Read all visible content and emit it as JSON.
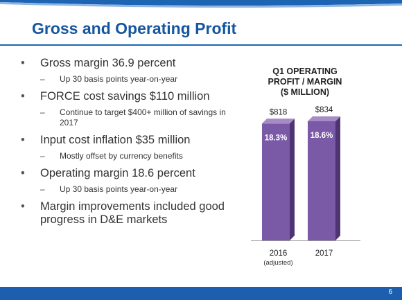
{
  "slide": {
    "title": "Gross and Operating Profit",
    "page_number": "6"
  },
  "bullets": [
    {
      "text": "Gross margin 36.9 percent",
      "subs": [
        "Up 30 basis points year-on-year"
      ]
    },
    {
      "text": "FORCE cost savings $110 million",
      "subs": [
        "Continue to target $400+ million of savings in 2017"
      ]
    },
    {
      "text": "Input cost inflation $35 million",
      "subs": [
        "Mostly offset by currency benefits"
      ]
    },
    {
      "text": "Operating margin 18.6 percent",
      "subs": [
        "Up 30 basis points year-on-year"
      ]
    },
    {
      "text": "Margin improvements included good progress in D&E markets",
      "subs": []
    }
  ],
  "colors": {
    "title": "#15569f",
    "accent": "#1d64b3",
    "bar_front": "#7a5aa6",
    "bar_side": "#4e3472",
    "bar_top": "#a58cc7"
  },
  "chart_data": {
    "type": "bar",
    "title_lines": [
      "Q1 OPERATING",
      "PROFIT / MARGIN",
      "($ MILLION)"
    ],
    "categories": [
      "2016",
      "2017"
    ],
    "category_notes": [
      "(adjusted)",
      ""
    ],
    "values": [
      818,
      834
    ],
    "value_labels": [
      "$818",
      "$834"
    ],
    "margin_labels": [
      "18.3%",
      "18.6%"
    ],
    "ylim": [
      0,
      834
    ]
  }
}
